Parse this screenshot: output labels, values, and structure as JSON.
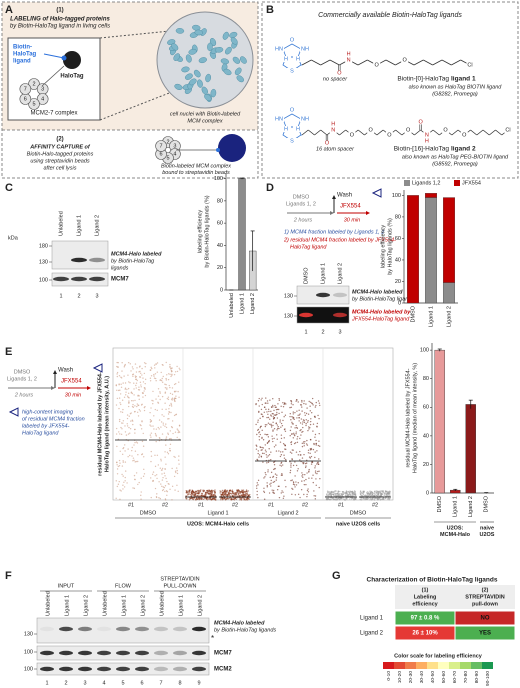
{
  "panel_a": {
    "letter": "A",
    "step1": {
      "number": "(1)",
      "lines": [
        "LABELING of Halo-tagged proteins",
        "by Biotin-HaloTag ligand in living cells"
      ]
    },
    "ligand_lines": [
      "Biotin-",
      "HaloTag",
      "ligand"
    ],
    "halotag": "HaloTag",
    "subunits": [
      "2",
      "3",
      "4",
      "5",
      "6",
      "7"
    ],
    "complex": "MCM2-7 complex",
    "nuclei_lines": [
      "cell nuclei with Biotin-labeled",
      "MCM complex"
    ],
    "step2": {
      "number": "(2)",
      "lines": [
        "AFFINITY CAPTURE of",
        "Biotin-Halo-tagged proteins",
        "using streptavidin beads",
        "after cell lysis"
      ]
    },
    "beads_lines": [
      "Biotin-labeled MCM complex",
      "bound to streptavidin beads"
    ]
  },
  "panel_b": {
    "letter": "B",
    "title": "Commercially available Biotin-HaloTag ligands",
    "ligands": [
      {
        "spacer": "no spacer",
        "name": "Biotin-[0]-HaloTag",
        "name_bold": "ligand 1",
        "aka": "also known as HaloTag BIOTIN ligand",
        "catalog": "(G8282, Promega)",
        "ring_atoms": [
          "O",
          "HN",
          "NH",
          "H",
          "H",
          "S"
        ],
        "chain": [
          null,
          null,
          null,
          null,
          null,
          "N",
          null,
          null,
          "O",
          null,
          null,
          "O",
          null,
          null,
          null,
          null,
          null,
          null,
          "Cl"
        ],
        "carbonyl_oxygens": [
          "O"
        ],
        "amide_hydrogens": [
          "H"
        ]
      },
      {
        "spacer": "16 atom spacer",
        "name": "Biotin-[16]-HaloTag",
        "name_bold": "ligand 2",
        "aka": "also known as HaloTag PEG-BIOTIN ligand",
        "catalog": "(G8592, Promega)",
        "ring_atoms": [
          "O",
          "HN",
          "NH",
          "H",
          "H",
          "S"
        ],
        "chain": [
          null,
          null,
          null,
          null,
          null,
          "N",
          null,
          null,
          "O",
          null,
          null,
          "O",
          null,
          null,
          "O",
          null,
          null,
          "O",
          null,
          null,
          "N",
          null,
          null,
          "O",
          null,
          null,
          "O",
          null,
          null,
          null,
          null,
          null,
          null,
          "Cl"
        ],
        "carbonyl_oxygens": [
          "O",
          "O"
        ],
        "amide_hydrogens": [
          "H",
          "H"
        ]
      }
    ]
  },
  "panel_c": {
    "letter": "C",
    "blot": {
      "lanes": [
        "Unlabeled",
        "Ligand 1",
        "Ligand 2"
      ],
      "kda": "kDa",
      "markers": [
        "180",
        "130",
        "100"
      ],
      "band_label_lines": [
        "MCM4-Halo labeled",
        "by Biotin-HaloTag",
        "ligands"
      ],
      "loading": "MCM7",
      "lane_numbers": [
        "1",
        "2",
        "3"
      ]
    },
    "chart": {
      "type": "bar",
      "categories": [
        "Unlabeled",
        "Ligand 1",
        "Ligand 2"
      ],
      "values": [
        0,
        100,
        35
      ],
      "errors": [
        0,
        0.5,
        18
      ],
      "colors": [
        "#2b2b2b",
        "#8c8c8c",
        "#d4d4d4"
      ],
      "ylim": [
        0,
        105
      ],
      "yticks": [
        0,
        20,
        40,
        60,
        80,
        100
      ],
      "ylabel_lines": [
        "labeling efficiency",
        "by Biotin-HaloTag ligands (%)"
      ]
    }
  },
  "panel_d": {
    "letter": "D",
    "scheme": {
      "treatment_lines": [
        "DMSO",
        "Ligands 1, 2"
      ],
      "duration": "2 hours",
      "wash": "Wash",
      "dye": "JFX554",
      "dye_time": "30 min"
    },
    "steps": [
      "1) MCM4 fraction labeled by Ligands 1, 2",
      "2) residual MCM4 fraction labeled by JFX554-",
      "HaloTag ligand"
    ],
    "blot": {
      "lanes": [
        "DMSO",
        "Ligand 1",
        "Ligand 2"
      ],
      "markers": [
        "130",
        "130"
      ],
      "biotin_label_lines": [
        "MCM4-Halo labeled",
        "by Biotin-HaloTag ligands"
      ],
      "jfx_label_lines": [
        "MCM4-Halo labeled by",
        "JFX554-HaloTag ligand"
      ],
      "lane_numbers": [
        "1",
        "2",
        "3"
      ]
    },
    "chart": {
      "type": "stacked_bar",
      "categories": [
        "DMSO",
        "Ligand 1",
        "Ligand 2"
      ],
      "series": [
        {
          "name": "Ligands 1,2",
          "color": "#8c8c8c",
          "values": [
            0,
            98,
            19
          ]
        },
        {
          "name": "JFX554",
          "color": "#c00000",
          "values": [
            100,
            4,
            79
          ]
        }
      ],
      "ylim": [
        0,
        105
      ],
      "yticks": [
        0,
        20,
        40,
        60,
        80,
        100
      ],
      "ylabel_lines": [
        "labeling efficiency",
        "by HaloTag ligands (%)"
      ]
    }
  },
  "panel_e": {
    "letter": "E",
    "scheme": {
      "treatment_lines": [
        "DMSO",
        "Ligands 1, 2"
      ],
      "duration": "2 hours",
      "wash": "Wash",
      "dye": "JFX554",
      "dye_time": "30 min"
    },
    "imaging_lines": [
      "high-content imaging",
      "of residual MCM4 fraction",
      "labeled by JFX554-",
      "HaloTag ligand"
    ],
    "scatter": {
      "ylabel_lines": [
        "residual MCM4-Halo labeled by JFX554-",
        "HaloTag ligand (mean intensity, A.U.)"
      ],
      "replicates": [
        "#1",
        "#2"
      ],
      "groups": [
        "DMSO",
        "Ligand 1",
        "Ligand 2",
        "DMSO"
      ],
      "cell_lines": [
        "U2OS: MCM4-Halo cells",
        "naive U2OS cells"
      ]
    },
    "chart": {
      "type": "bar",
      "categories": [
        "DMSO",
        "Ligand 1",
        "Ligand 2",
        "DMSO"
      ],
      "values": [
        100,
        2,
        62,
        0
      ],
      "errors": [
        0.8,
        0.6,
        3,
        0.3
      ],
      "colors": [
        "#e79a9a",
        "#b71c1c",
        "#8b1a1a",
        "#5a0f0f"
      ],
      "ylim": [
        0,
        105
      ],
      "yticks": [
        0,
        20,
        40,
        60,
        80,
        100
      ],
      "ylabel_lines": [
        "residual MCM4-Halo labeled by JFX554-",
        "HaloTag ligand (median of mean intensity, %)"
      ],
      "group_labels": [
        [
          "U2OS:",
          "MCM4-Halo"
        ],
        [
          "naive",
          "U2OS"
        ]
      ]
    }
  },
  "panel_f": {
    "letter": "F",
    "headers": [
      [
        "INPUT"
      ],
      [
        "FLOW"
      ],
      [
        "STREPTAVIDIN",
        "PULL-DOWN"
      ]
    ],
    "lanes": [
      "Unlabeled",
      "Ligand 1",
      "Ligand 2",
      "Unlabeled",
      "Ligand 1",
      "Ligand 2",
      "Unlabeled",
      "Ligand 1",
      "Ligand 2"
    ],
    "markers": [
      "130",
      "100",
      "100"
    ],
    "band_label_lines": [
      "MCM4-Halo labeled",
      "by Biotin-HaloTag ligands"
    ],
    "asterisk": "*",
    "loading": [
      "MCM7",
      "MCM2"
    ],
    "lane_numbers": [
      "1",
      "2",
      "3",
      "4",
      "5",
      "6",
      "7",
      "8",
      "9"
    ]
  },
  "panel_g": {
    "letter": "G",
    "title": "Characterization of Biotin-HaloTag ligands",
    "columns": [
      [
        "(1)",
        "Labeling",
        "efficiency"
      ],
      [
        "(2)",
        "STREPTAVIDIN",
        "pull-down"
      ]
    ],
    "rows": [
      {
        "label": "Ligand 1",
        "cells": [
          "97 ± 0.8 %",
          "NO"
        ],
        "colors": [
          "#4caf50",
          "#c62828"
        ]
      },
      {
        "label": "Ligand 2",
        "cells": [
          "26 ± 10%",
          "YES"
        ],
        "colors": [
          "#e53935",
          "#4caf50"
        ]
      }
    ],
    "scale_title": "Color scale for labeling efficiency",
    "scale": [
      "0-10",
      "10-20",
      "20-30",
      "30-40",
      "40-50",
      "50-60",
      "60-70",
      "70-80",
      "80-90",
      "90-100"
    ],
    "scale_colors": [
      "#d7191c",
      "#e34a33",
      "#f07c4a",
      "#fdae61",
      "#fee08b",
      "#ffffbf",
      "#d9ef8b",
      "#a6d96a",
      "#66bd63",
      "#1a9850"
    ]
  }
}
